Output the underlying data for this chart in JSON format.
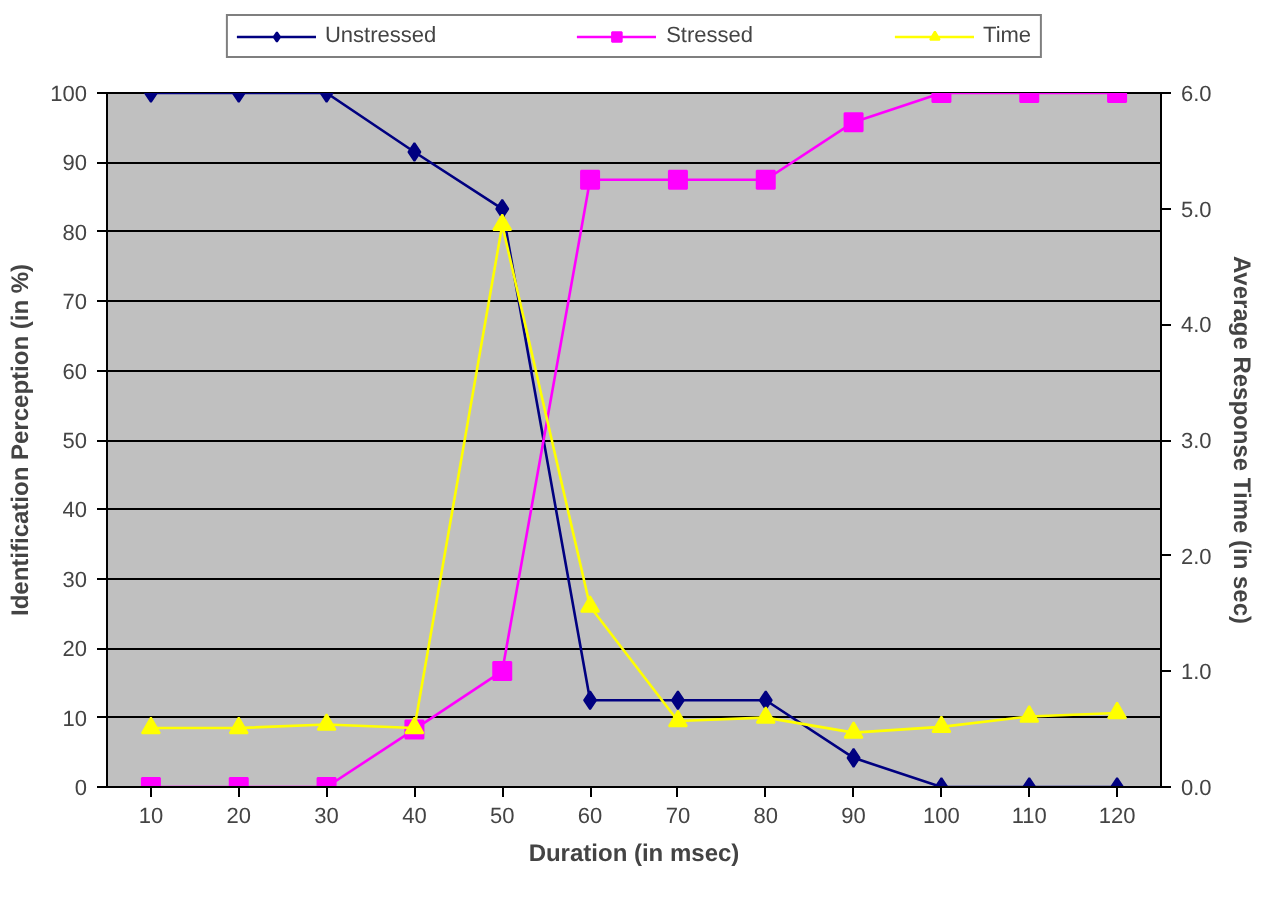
{
  "chart_data": {
    "type": "line",
    "xlabel": "Duration (in msec)",
    "ylabel": "Identification Perception (in %)",
    "y2label": "Average Response Time (in sec)",
    "categories": [
      "10",
      "20",
      "30",
      "40",
      "50",
      "60",
      "70",
      "80",
      "90",
      "100",
      "110",
      "120"
    ],
    "series": [
      {
        "name": "Unstressed",
        "color": "#000080",
        "marker": "diamond",
        "values": [
          100,
          100,
          100,
          91.5,
          83.3,
          12.5,
          12.5,
          12.5,
          4.2,
          0,
          0,
          0
        ]
      },
      {
        "name": "Stressed",
        "color": "#ff00ff",
        "marker": "square",
        "values": [
          0,
          0,
          0,
          8.3,
          16.7,
          87.5,
          87.5,
          87.5,
          95.8,
          100,
          100,
          100
        ]
      },
      {
        "name": "Time",
        "color": "#ffff00",
        "marker": "triangle",
        "axis": "y2",
        "values": [
          0.51,
          0.51,
          0.54,
          0.51,
          4.86,
          1.56,
          0.57,
          0.6,
          0.47,
          0.52,
          0.61,
          0.64
        ]
      }
    ],
    "ylim": [
      0,
      100
    ],
    "yticks": [
      0,
      10,
      20,
      30,
      40,
      50,
      60,
      70,
      80,
      90,
      100
    ],
    "y2lim": [
      0,
      6
    ],
    "y2ticks": [
      {
        "value": 0,
        "label": "0.0"
      },
      {
        "value": 1,
        "label": "1.0"
      },
      {
        "value": 2,
        "label": "2.0"
      },
      {
        "value": 3,
        "label": "3.0"
      },
      {
        "value": 4,
        "label": "4.0"
      },
      {
        "value": 5,
        "label": "5.0"
      },
      {
        "value": 6,
        "label": "6.0"
      }
    ],
    "grid": "y",
    "legend": "top",
    "line_style": "solid"
  }
}
